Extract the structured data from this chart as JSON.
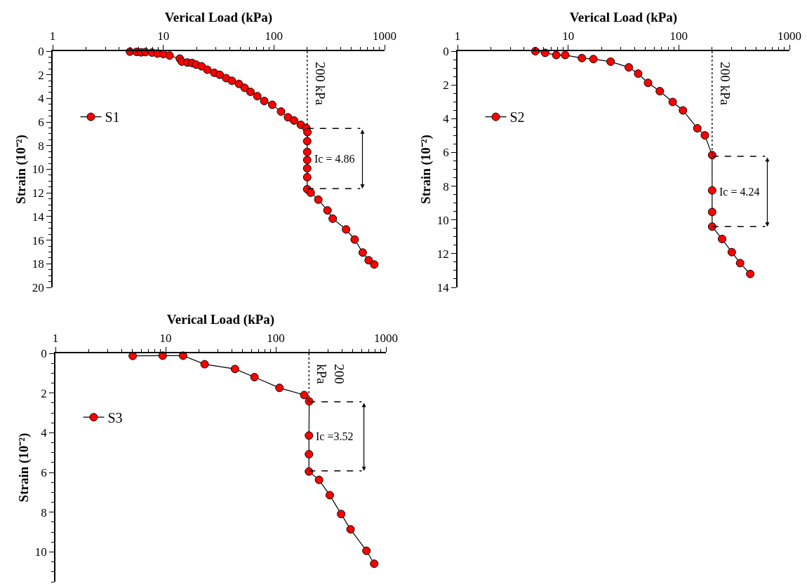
{
  "chart_data": [
    {
      "type": "line",
      "xlabel": "Verical Load (kPa)",
      "ylabel": "Strain (10⁻²)",
      "log": "x",
      "xlim": [
        1,
        1000
      ],
      "xticks": [
        1,
        10,
        100,
        1000
      ],
      "ylim": [
        20,
        0
      ],
      "yticks": [
        0,
        2,
        4,
        6,
        8,
        10,
        12,
        14,
        16,
        18,
        20
      ],
      "marker": "circle",
      "line_style": "solid",
      "legend": "top left",
      "series": [
        {
          "name": "S1",
          "color": "#ff0000",
          "x": [
            5.0,
            5.75,
            6.3,
            6.9,
            7.9,
            8.85,
            10,
            11.4,
            14.1,
            14.7,
            16.5,
            18.2,
            19.8,
            22.2,
            25,
            28.9,
            32.4,
            37,
            41.7,
            48.3,
            54.3,
            61.4,
            70.7,
            81.8,
            96.6,
            116,
            134,
            152,
            175,
            196,
            201,
            200,
            200,
            200,
            200,
            200,
            200,
            215,
            252,
            305,
            340,
            449,
            537,
            635,
            718,
            807
          ],
          "values": [
            0.04,
            0.06,
            0.1,
            0.08,
            0.12,
            0.2,
            0.24,
            0.37,
            0.63,
            0.88,
            0.96,
            1.0,
            1.14,
            1.28,
            1.57,
            1.83,
            2.0,
            2.28,
            2.51,
            2.77,
            3.1,
            3.44,
            3.81,
            4.22,
            4.54,
            5.11,
            5.6,
            5.87,
            6.23,
            6.5,
            6.86,
            7.62,
            8.53,
            9.21,
            9.92,
            10.67,
            11.69,
            11.98,
            12.57,
            13.48,
            14.18,
            15.09,
            15.95,
            17.05,
            17.7,
            18.06
          ]
        }
      ],
      "ref_lines": [
        {
          "axis": "x",
          "value": 200,
          "label": "200 kPa",
          "line_style": "dotted",
          "color": "#000000"
        },
        {
          "axis": "y",
          "value": 6.54,
          "line_style": "dashed",
          "color": "#000000"
        },
        {
          "axis": "y",
          "value": 11.63,
          "line_style": "dashed",
          "color": "#000000"
        }
      ],
      "annotations": [
        "Ic = 4.86"
      ]
    },
    {
      "type": "line",
      "xlabel": "Verical Load (kPa)",
      "ylabel": "Strain (10⁻²)",
      "log": "x",
      "xlim": [
        1,
        1000
      ],
      "xticks": [
        1,
        10,
        100,
        1000
      ],
      "ylim": [
        14,
        0
      ],
      "yticks": [
        0,
        2,
        4,
        6,
        8,
        10,
        12,
        14
      ],
      "marker": "circle",
      "line_style": "solid",
      "legend": "top left",
      "series": [
        {
          "name": "S2",
          "color": "#ff0000",
          "x": [
            5.05,
            6.2,
            7.8,
            9.4,
            13.3,
            16.9,
            24.2,
            35.3,
            42.9,
            52.7,
            67.3,
            88,
            109,
            147,
            172,
            200,
            200,
            200,
            200,
            246,
            301,
            358,
            442
          ],
          "values": [
            0.0,
            0.1,
            0.23,
            0.23,
            0.41,
            0.47,
            0.62,
            0.96,
            1.33,
            1.88,
            2.37,
            3.01,
            3.51,
            4.57,
            4.99,
            6.16,
            8.25,
            9.53,
            10.4,
            11.13,
            11.91,
            12.56,
            13.2
          ]
        }
      ],
      "ref_lines": [
        {
          "axis": "x",
          "value": 200,
          "label": "200 kPa",
          "line_style": "dotted",
          "color": "#000000"
        },
        {
          "axis": "y",
          "value": 6.23,
          "line_style": "dashed",
          "color": "#000000"
        },
        {
          "axis": "y",
          "value": 10.4,
          "line_style": "dashed",
          "color": "#000000"
        }
      ],
      "annotations": [
        "Ic = 4.24"
      ]
    },
    {
      "type": "line",
      "xlabel": "Verical Load (kPa)",
      "ylabel": "Strain (10⁻²)",
      "log": "x",
      "xlim": [
        1,
        1000
      ],
      "xticks": [
        1,
        10,
        100,
        1000
      ],
      "ylim": [
        11.5,
        0
      ],
      "yticks": [
        0,
        2,
        4,
        6,
        8,
        10
      ],
      "marker": "circle",
      "line_style": "solid",
      "legend": "top left",
      "series": [
        {
          "name": "S3",
          "color": "#ff0000",
          "x": [
            5.03,
            9.4,
            14.4,
            22.6,
            42.6,
            64,
            108,
            181,
            201,
            200,
            200,
            200,
            247,
            309,
            392,
            477,
            665,
            782
          ],
          "values": [
            0.13,
            0.12,
            0.12,
            0.55,
            0.79,
            1.2,
            1.74,
            2.1,
            2.42,
            4.14,
            5.08,
            5.95,
            6.37,
            7.14,
            8.09,
            8.86,
            9.94,
            10.59
          ]
        }
      ],
      "ref_lines": [
        {
          "axis": "x",
          "value": 200,
          "label": "200\nkPa",
          "line_style": "dotted",
          "color": "#000000"
        },
        {
          "axis": "y",
          "value": 2.44,
          "line_style": "dashed",
          "color": "#000000"
        },
        {
          "axis": "y",
          "value": 5.92,
          "line_style": "dashed",
          "color": "#000000"
        }
      ],
      "annotations": [
        "Ic =3.52"
      ]
    }
  ]
}
